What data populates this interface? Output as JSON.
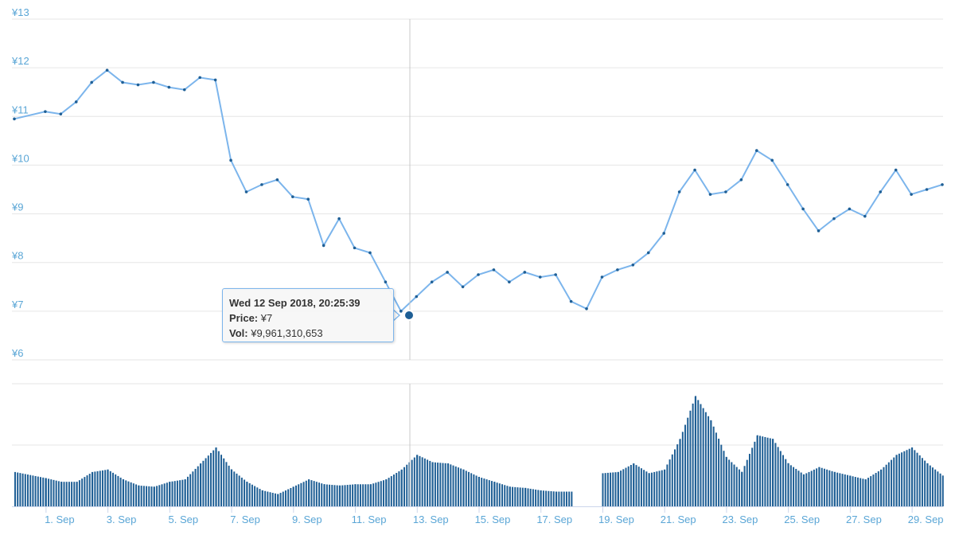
{
  "chart_data": [
    {
      "type": "line",
      "series": [
        {
          "name": "Price"
        }
      ],
      "x": [
        "2018-08-31",
        "2018-09-01",
        "2018-09-01",
        "2018-09-02",
        "2018-09-02",
        "2018-09-03",
        "2018-09-03",
        "2018-09-04",
        "2018-09-04",
        "2018-09-05",
        "2018-09-05",
        "2018-09-06",
        "2018-09-06",
        "2018-09-07",
        "2018-09-07",
        "2018-09-08",
        "2018-09-08",
        "2018-09-09",
        "2018-09-09",
        "2018-09-10",
        "2018-09-10",
        "2018-09-11",
        "2018-09-11",
        "2018-09-12",
        "2018-09-12",
        "2018-09-13",
        "2018-09-13",
        "2018-09-14",
        "2018-09-14",
        "2018-09-15",
        "2018-09-15",
        "2018-09-16",
        "2018-09-16",
        "2018-09-17",
        "2018-09-17",
        "2018-09-18",
        "2018-09-18",
        "2018-09-19",
        "2018-09-19",
        "2018-09-20",
        "2018-09-20",
        "2018-09-21",
        "2018-09-21",
        "2018-09-22",
        "2018-09-22",
        "2018-09-23",
        "2018-09-23",
        "2018-09-24",
        "2018-09-24",
        "2018-09-25",
        "2018-09-25",
        "2018-09-26",
        "2018-09-26",
        "2018-09-27",
        "2018-09-27",
        "2018-09-28",
        "2018-09-28",
        "2018-09-29",
        "2018-09-29",
        "2018-09-30"
      ],
      "values": [
        10.95,
        11.1,
        11.05,
        11.3,
        11.7,
        11.95,
        11.7,
        11.65,
        11.7,
        11.6,
        11.55,
        11.8,
        11.75,
        10.1,
        9.45,
        9.6,
        9.7,
        9.35,
        9.3,
        8.35,
        8.9,
        8.3,
        8.2,
        7.6,
        7.0,
        7.3,
        7.6,
        7.8,
        7.5,
        7.75,
        7.85,
        7.6,
        7.8,
        7.7,
        7.75,
        7.2,
        7.05,
        7.7,
        7.85,
        7.95,
        8.2,
        8.6,
        9.45,
        9.9,
        9.4,
        9.45,
        9.7,
        10.3,
        10.1,
        9.6,
        9.1,
        8.65,
        8.9,
        9.1,
        8.95,
        9.45,
        9.9,
        9.4,
        9.5,
        9.6
      ],
      "yticks": [
        "¥6",
        "¥7",
        "¥8",
        "¥9",
        "¥10",
        "¥11",
        "¥12",
        "¥13"
      ],
      "ylim": [
        6,
        13
      ],
      "grid": true
    },
    {
      "type": "bar",
      "series": [
        {
          "name": "Vol"
        }
      ],
      "x": [
        "2018-08-31",
        "2018-09-01",
        "2018-09-01",
        "2018-09-02",
        "2018-09-02",
        "2018-09-03",
        "2018-09-03",
        "2018-09-04",
        "2018-09-04",
        "2018-09-05",
        "2018-09-05",
        "2018-09-06",
        "2018-09-06",
        "2018-09-07",
        "2018-09-07",
        "2018-09-08",
        "2018-09-08",
        "2018-09-09",
        "2018-09-09",
        "2018-09-10",
        "2018-09-10",
        "2018-09-11",
        "2018-09-11",
        "2018-09-12",
        "2018-09-12",
        "2018-09-13",
        "2018-09-13",
        "2018-09-14",
        "2018-09-14",
        "2018-09-15",
        "2018-09-15",
        "2018-09-16",
        "2018-09-16",
        "2018-09-17",
        "2018-09-17",
        "2018-09-18",
        "2018-09-18",
        "2018-09-19",
        "2018-09-19",
        "2018-09-20",
        "2018-09-20",
        "2018-09-21",
        "2018-09-21",
        "2018-09-22",
        "2018-09-22",
        "2018-09-23",
        "2018-09-23",
        "2018-09-24",
        "2018-09-24",
        "2018-09-25",
        "2018-09-25",
        "2018-09-26",
        "2018-09-26",
        "2018-09-27",
        "2018-09-27",
        "2018-09-28",
        "2018-09-28",
        "2018-09-29",
        "2018-09-29",
        "2018-09-30"
      ],
      "values": [
        0.28,
        0.23,
        0.2,
        0.2,
        0.28,
        0.3,
        0.22,
        0.17,
        0.16,
        0.2,
        0.22,
        0.35,
        0.48,
        0.3,
        0.2,
        0.13,
        0.1,
        0.16,
        0.22,
        0.18,
        0.17,
        0.18,
        0.18,
        0.22,
        0.3,
        0.42,
        0.36,
        0.35,
        0.3,
        0.24,
        0.2,
        0.16,
        0.15,
        0.13,
        0.12,
        0.12,
        0.0,
        0.27,
        0.28,
        0.35,
        0.27,
        0.3,
        0.55,
        0.9,
        0.7,
        0.4,
        0.28,
        0.58,
        0.55,
        0.35,
        0.26,
        0.32,
        0.28,
        0.25,
        0.22,
        0.3,
        0.42,
        0.48,
        0.35,
        0.25
      ],
      "grid": true
    }
  ],
  "x_ticks": [
    "1. Sep",
    "3. Sep",
    "5. Sep",
    "7. Sep",
    "9. Sep",
    "11. Sep",
    "13. Sep",
    "15. Sep",
    "17. Sep",
    "19. Sep",
    "21. Sep",
    "23. Sep",
    "25. Sep",
    "27. Sep",
    "29. Sep"
  ],
  "tooltip": {
    "title": "Wed 12 Sep 2018, 20:25:39",
    "price_label": "Price:",
    "price_value": "¥7",
    "vol_label": "Vol:",
    "vol_value": "¥9,961,310,653"
  },
  "colors": {
    "line": "#7cb5ec",
    "marker": "#1f5f95",
    "bar": "#1f5f95",
    "tick_text": "#5aa6d6"
  }
}
